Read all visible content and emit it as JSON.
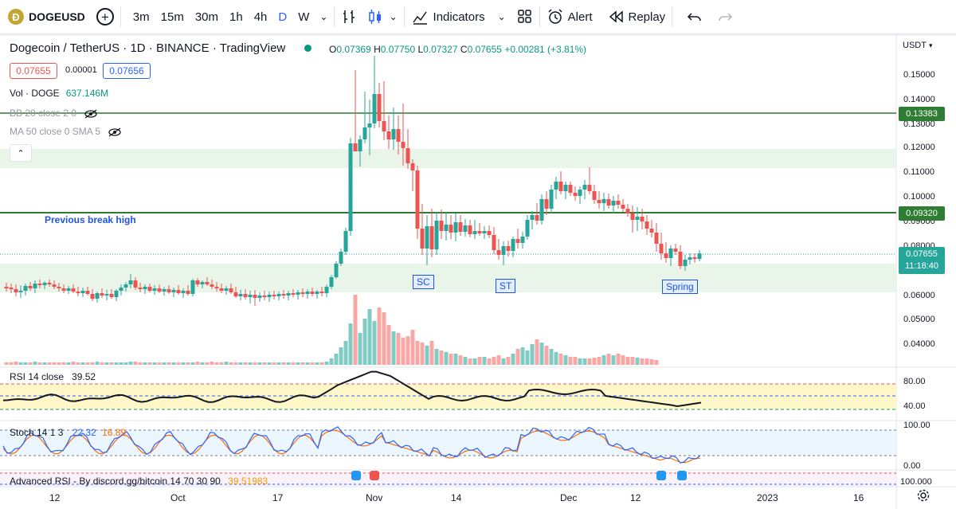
{
  "toolbar": {
    "symbol": "DOGEUSD",
    "symbol_icon": "Ð",
    "intervals": [
      "3m",
      "15m",
      "30m",
      "1h",
      "4h",
      "D",
      "W"
    ],
    "indicators_label": "Indicators",
    "alert_label": "Alert",
    "replay_label": "Replay"
  },
  "legend": {
    "title": "Dogecoin / TetherUS · 1D · BINANCE · TradingView",
    "o_label": "O",
    "o": "0.07369",
    "h_label": "H",
    "h": "0.07750",
    "l_label": "L",
    "l": "0.07327",
    "c_label": "C",
    "c": "0.07655",
    "change": "+0.00281 (+3.81%)",
    "bid": "0.07655",
    "spread": "0.00001",
    "ask": "0.07656"
  },
  "indicators": {
    "vol_label": "Vol · DOGE",
    "vol_value": "637.146M",
    "bb_label": "BB 20 close 2 0",
    "ma_label": "MA 50 close 0 SMA 5",
    "rsi_label": "RSI 14 close",
    "rsi_value": "39.52",
    "stoch_label": "Stoch 14 1 3",
    "stoch_k": "22.32",
    "stoch_d": "16.89",
    "adv_rsi_label": "Advanced RSI - By discord.gg/bitcoin 14 70 30 90",
    "adv_rsi_value": "39.51983"
  },
  "price_axis": {
    "currency": "USDT",
    "ticks": [
      "0.15000",
      "0.14000",
      "0.13000",
      "0.12000",
      "0.11000",
      "0.10000",
      "0.09000",
      "0.08000",
      "0.06000",
      "0.05000",
      "0.04000"
    ],
    "level_high": "0.13383",
    "level_mid": "0.09320",
    "last_price": "0.07655",
    "countdown": "11:18:40"
  },
  "rsi_axis": [
    "80.00",
    "40.00"
  ],
  "stoch_axis": [
    "100.00",
    "0.00"
  ],
  "adv_axis": "100.000",
  "time_axis": [
    "12",
    "Oct",
    "17",
    "Nov",
    "14",
    "Dec",
    "12",
    "2023",
    "16"
  ],
  "annotations": {
    "prev_break": "Previous break high",
    "sc": "SC",
    "st": "ST",
    "spring": "Spring"
  },
  "colors": {
    "up": "#26a69a",
    "down": "#ef5350",
    "level": "#2e7d32",
    "accent": "#2962ff"
  }
}
